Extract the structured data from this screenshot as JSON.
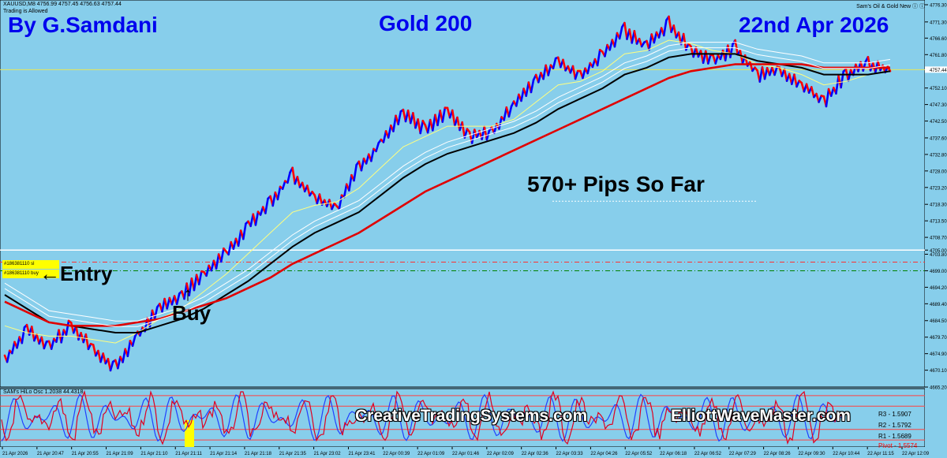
{
  "header": {
    "symbol_line": "XAUUSD,M8  4756.99 4757.45 4756.63 4757.44",
    "trading_status": "Trading is Allowed",
    "indicator_title": "Sam's Oil & Gold New ⓘ ⓘ"
  },
  "overlay": {
    "author": "By G.Samdani",
    "chart_name": "Gold 200",
    "date": "22nd Apr 2026",
    "pips_text": "570+ Pips So Far",
    "entry_label": "←Entry",
    "buy_label": "Buy",
    "entry_arrow": "↑",
    "watermark_1": "CreativeTradingSystems.com",
    "watermark_2": "ElliottWaveMaster.com"
  },
  "orders": {
    "sl_tag": "#186381110 sl",
    "buy_tag": "#186381110 buy"
  },
  "pivot_labels": [
    "R3 - 1.5907",
    "R2 - 1.5792",
    "R1 - 1.5689",
    "Pivot - 1.5574"
  ],
  "indicator_label": "SAM's HiLo Osc 1.2038 44.4318",
  "colors": {
    "background": "#87ceeb",
    "up_bar": "#0000ff",
    "down_bar": "#ff0000",
    "ma_slow": "#e00000",
    "ma_mid": "#000000",
    "ma_fast_1": "#ffffff",
    "ma_fast_2": "#ffff80",
    "text_overlay": "#0000ee"
  },
  "chart_data": {
    "type": "line",
    "symbol": "XAUUSD",
    "timeframe": "M8",
    "ylim": [
      4665.2,
      4776.3
    ],
    "y_ticks": [
      4776.3,
      4771.3,
      4766.6,
      4761.8,
      4757.44,
      4752.1,
      4747.3,
      4742.5,
      4737.6,
      4732.8,
      4728.0,
      4723.2,
      4718.3,
      4713.5,
      4708.7,
      4705.0,
      4703.8,
      4699.0,
      4694.2,
      4689.4,
      4684.5,
      4679.7,
      4674.9,
      4670.1,
      4665.2
    ],
    "y_tick_labels": [
      "4776.30",
      "4771.30",
      "4766.60",
      "4761.80",
      "4757.44",
      "4752.10",
      "4747.30",
      "4742.50",
      "4737.60",
      "4732.80",
      "4728.00",
      "4723.20",
      "4718.30",
      "4713.50",
      "4708.70",
      "4705.00",
      "4703.80",
      "4699.00",
      "4694.20",
      "4689.40",
      "4684.50",
      "4679.70",
      "4674.90",
      "4670.10",
      "4665.20"
    ],
    "x_labels": [
      "21 Apr 2026",
      "21 Apr 20:47",
      "21 Apr 20:55",
      "21 Apr 21:09",
      "21 Apr 21:10",
      "21 Apr 21:11",
      "21 Apr 21:14",
      "21 Apr 21:18",
      "21 Apr 21:35",
      "21 Apr 23:02",
      "21 Apr 23:41",
      "22 Apr 00:39",
      "22 Apr 01:09",
      "22 Apr 01:46",
      "22 Apr 02:09",
      "22 Apr 02:36",
      "22 Apr 03:33",
      "22 Apr 04:26",
      "22 Apr 05:52",
      "22 Apr 06:18",
      "22 Apr 06:52",
      "22 Apr 07:29",
      "22 Apr 08:26",
      "22 Apr 09:30",
      "22 Apr 10:44",
      "22 Apr 11:15",
      "22 Apr 12:09"
    ],
    "current_price": 4757.44,
    "entry_price": 4699.0,
    "stop_loss_price": 4701.5,
    "horizontal_levels": [
      4705.0,
      4719.2
    ],
    "price_path": [
      [
        0,
        4673
      ],
      [
        1,
        4682
      ],
      [
        2,
        4677
      ],
      [
        3,
        4683
      ],
      [
        4,
        4676
      ],
      [
        5,
        4671
      ],
      [
        6,
        4680
      ],
      [
        7,
        4688
      ],
      [
        8,
        4692
      ],
      [
        9,
        4698
      ],
      [
        10,
        4704
      ],
      [
        11,
        4712
      ],
      [
        12,
        4719
      ],
      [
        13,
        4727
      ],
      [
        14,
        4720
      ],
      [
        15,
        4717
      ],
      [
        16,
        4729
      ],
      [
        17,
        4736
      ],
      [
        18,
        4745
      ],
      [
        19,
        4740
      ],
      [
        20,
        4745
      ],
      [
        21,
        4738
      ],
      [
        22,
        4739
      ],
      [
        23,
        4747
      ],
      [
        24,
        4754
      ],
      [
        25,
        4760
      ],
      [
        26,
        4755
      ],
      [
        27,
        4762
      ],
      [
        28,
        4769
      ],
      [
        29,
        4764
      ],
      [
        30,
        4771
      ],
      [
        31,
        4763
      ],
      [
        32,
        4760
      ],
      [
        33,
        4764
      ],
      [
        34,
        4756
      ],
      [
        35,
        4757
      ],
      [
        36,
        4753
      ],
      [
        37,
        4748
      ],
      [
        38,
        4756
      ],
      [
        39,
        4759
      ],
      [
        40,
        4757
      ]
    ],
    "series": [
      {
        "name": "",
        "values": [
          4683,
          4681,
          4680,
          4680,
          4679,
          4678,
          4681,
          4685,
          4688,
          4693,
          4698,
          4704,
          4710,
          4716,
          4718,
          4719,
          4723,
          4729,
          4735,
          4738,
          4741,
          4741,
          4741,
          4743,
          4748,
          4753,
          4754,
          4757,
          4762,
          4763,
          4766,
          4765,
          4763,
          4762,
          4759,
          4758,
          4756,
          4753,
          4754,
          4756,
          4757
        ]
      },
      {
        "name": "",
        "values": [
          4692,
          4688,
          4684,
          4683,
          4682,
          4681,
          4681,
          4683,
          4685,
          4688,
          4692,
          4696,
          4701,
          4706,
          4710,
          4713,
          4716,
          4721,
          4726,
          4730,
          4733,
          4735,
          4737,
          4739,
          4742,
          4746,
          4749,
          4752,
          4756,
          4758,
          4761,
          4762,
          4762,
          4762,
          4760,
          4759,
          4758,
          4756,
          4756,
          4756,
          4757
        ]
      },
      {
        "name": "",
        "values": [
          4690,
          4687,
          4684,
          4683,
          4683,
          4683,
          4684,
          4685,
          4687,
          4689,
          4691,
          4694,
          4697,
          4701,
          4704,
          4707,
          4710,
          4714,
          4718,
          4722,
          4725,
          4728,
          4731,
          4734,
          4737,
          4740,
          4743,
          4746,
          4749,
          4752,
          4755,
          4757,
          4758,
          4759,
          4759,
          4759,
          4759,
          4758,
          4758,
          4758,
          4758
        ]
      }
    ]
  }
}
